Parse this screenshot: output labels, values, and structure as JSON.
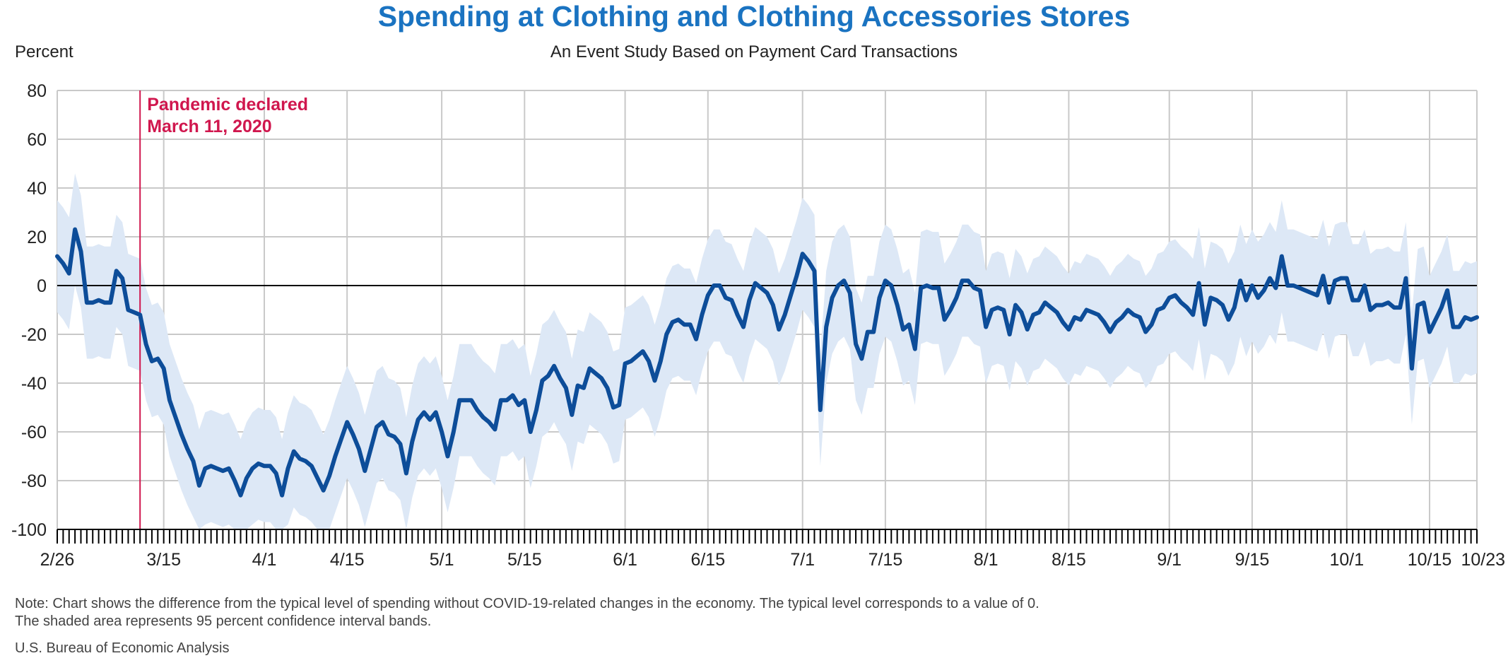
{
  "chart_data": {
    "type": "line",
    "title": "Spending at Clothing and Clothing Accessories Stores",
    "subtitle": "An Event Study Based on Payment Card Transactions",
    "ylabel": "Percent",
    "ylim": [
      -100,
      80
    ],
    "yticks": [
      -100,
      -80,
      -60,
      -40,
      -20,
      0,
      20,
      40,
      60,
      80
    ],
    "xlim": [
      "2020-02-26",
      "2020-10-23"
    ],
    "xtick_labels": [
      {
        "date": "2020-02-26",
        "label": "2/26"
      },
      {
        "date": "2020-03-15",
        "label": "3/15"
      },
      {
        "date": "2020-04-01",
        "label": "4/1"
      },
      {
        "date": "2020-04-15",
        "label": "4/15"
      },
      {
        "date": "2020-05-01",
        "label": "5/1"
      },
      {
        "date": "2020-05-15",
        "label": "5/15"
      },
      {
        "date": "2020-06-01",
        "label": "6/1"
      },
      {
        "date": "2020-06-15",
        "label": "6/15"
      },
      {
        "date": "2020-07-01",
        "label": "7/1"
      },
      {
        "date": "2020-07-15",
        "label": "7/15"
      },
      {
        "date": "2020-08-01",
        "label": "8/1"
      },
      {
        "date": "2020-08-15",
        "label": "8/15"
      },
      {
        "date": "2020-09-01",
        "label": "9/1"
      },
      {
        "date": "2020-09-15",
        "label": "9/15"
      },
      {
        "date": "2020-10-01",
        "label": "10/1"
      },
      {
        "date": "2020-10-15",
        "label": "10/15"
      },
      {
        "date": "2020-10-23",
        "label": "10/23"
      }
    ],
    "grid": true,
    "annotation": {
      "date": "2020-03-11",
      "line1": "Pandemic declared",
      "line2": "March 11, 2020",
      "color": "#d0174e"
    },
    "colors": {
      "line": "#0d4d99",
      "band": "#dde8f6",
      "grid": "#c9c9c9",
      "zero_line": "#000000",
      "title": "#1a73c1"
    },
    "series": [
      {
        "values_by_date": [
          [
            "2020-02-26",
            12
          ],
          [
            "2020-02-27",
            9
          ],
          [
            "2020-02-28",
            5
          ],
          [
            "2020-02-29",
            23
          ],
          [
            "2020-03-01",
            14
          ],
          [
            "2020-03-02",
            -7
          ],
          [
            "2020-03-03",
            -7
          ],
          [
            "2020-03-04",
            -6
          ],
          [
            "2020-03-05",
            -7
          ],
          [
            "2020-03-06",
            -7
          ],
          [
            "2020-03-07",
            6
          ],
          [
            "2020-03-08",
            3
          ],
          [
            "2020-03-09",
            -10
          ],
          [
            "2020-03-10",
            -11
          ],
          [
            "2020-03-11",
            -12
          ],
          [
            "2020-03-12",
            -24
          ],
          [
            "2020-03-13",
            -31
          ],
          [
            "2020-03-14",
            -30
          ],
          [
            "2020-03-15",
            -34
          ],
          [
            "2020-03-16",
            -47
          ],
          [
            "2020-03-17",
            -54
          ],
          [
            "2020-03-18",
            -61
          ],
          [
            "2020-03-19",
            -67
          ],
          [
            "2020-03-20",
            -72
          ],
          [
            "2020-03-21",
            -82
          ],
          [
            "2020-03-22",
            -75
          ],
          [
            "2020-03-23",
            -74
          ],
          [
            "2020-03-24",
            -75
          ],
          [
            "2020-03-25",
            -76
          ],
          [
            "2020-03-26",
            -75
          ],
          [
            "2020-03-27",
            -80
          ],
          [
            "2020-03-28",
            -86
          ],
          [
            "2020-03-29",
            -79
          ],
          [
            "2020-03-30",
            -75
          ],
          [
            "2020-03-31",
            -73
          ],
          [
            "2020-04-01",
            -74
          ],
          [
            "2020-04-02",
            -74
          ],
          [
            "2020-04-03",
            -77
          ],
          [
            "2020-04-04",
            -86
          ],
          [
            "2020-04-05",
            -75
          ],
          [
            "2020-04-06",
            -68
          ],
          [
            "2020-04-07",
            -71
          ],
          [
            "2020-04-08",
            -72
          ],
          [
            "2020-04-09",
            -74
          ],
          [
            "2020-04-10",
            -79
          ],
          [
            "2020-04-11",
            -84
          ],
          [
            "2020-04-12",
            -78
          ],
          [
            "2020-04-13",
            -70
          ],
          [
            "2020-04-14",
            -63
          ],
          [
            "2020-04-15",
            -56
          ],
          [
            "2020-04-16",
            -61
          ],
          [
            "2020-04-17",
            -67
          ],
          [
            "2020-04-18",
            -76
          ],
          [
            "2020-04-19",
            -67
          ],
          [
            "2020-04-20",
            -58
          ],
          [
            "2020-04-21",
            -56
          ],
          [
            "2020-04-22",
            -61
          ],
          [
            "2020-04-23",
            -62
          ],
          [
            "2020-04-24",
            -65
          ],
          [
            "2020-04-25",
            -77
          ],
          [
            "2020-04-26",
            -64
          ],
          [
            "2020-04-27",
            -55
          ],
          [
            "2020-04-28",
            -52
          ],
          [
            "2020-04-29",
            -55
          ],
          [
            "2020-04-30",
            -52
          ],
          [
            "2020-05-01",
            -60
          ],
          [
            "2020-05-02",
            -70
          ],
          [
            "2020-05-03",
            -60
          ],
          [
            "2020-05-04",
            -47
          ],
          [
            "2020-05-05",
            -47
          ],
          [
            "2020-05-06",
            -47
          ],
          [
            "2020-05-07",
            -51
          ],
          [
            "2020-05-08",
            -54
          ],
          [
            "2020-05-09",
            -56
          ],
          [
            "2020-05-10",
            -59
          ],
          [
            "2020-05-11",
            -47
          ],
          [
            "2020-05-12",
            -47
          ],
          [
            "2020-05-13",
            -45
          ],
          [
            "2020-05-14",
            -49
          ],
          [
            "2020-05-15",
            -47
          ],
          [
            "2020-05-16",
            -60
          ],
          [
            "2020-05-17",
            -51
          ],
          [
            "2020-05-18",
            -39
          ],
          [
            "2020-05-19",
            -37
          ],
          [
            "2020-05-20",
            -33
          ],
          [
            "2020-05-21",
            -38
          ],
          [
            "2020-05-22",
            -42
          ],
          [
            "2020-05-23",
            -53
          ],
          [
            "2020-05-24",
            -41
          ],
          [
            "2020-05-25",
            -42
          ],
          [
            "2020-05-26",
            -34
          ],
          [
            "2020-05-27",
            -36
          ],
          [
            "2020-05-28",
            -38
          ],
          [
            "2020-05-29",
            -42
          ],
          [
            "2020-05-30",
            -50
          ],
          [
            "2020-05-31",
            -49
          ],
          [
            "2020-06-01",
            -32
          ],
          [
            "2020-06-02",
            -31
          ],
          [
            "2020-06-03",
            -29
          ],
          [
            "2020-06-04",
            -27
          ],
          [
            "2020-06-05",
            -31
          ],
          [
            "2020-06-06",
            -39
          ],
          [
            "2020-06-07",
            -31
          ],
          [
            "2020-06-08",
            -20
          ],
          [
            "2020-06-09",
            -15
          ],
          [
            "2020-06-10",
            -14
          ],
          [
            "2020-06-11",
            -16
          ],
          [
            "2020-06-12",
            -16
          ],
          [
            "2020-06-13",
            -22
          ],
          [
            "2020-06-14",
            -12
          ],
          [
            "2020-06-15",
            -4
          ],
          [
            "2020-06-16",
            0
          ],
          [
            "2020-06-17",
            0
          ],
          [
            "2020-06-18",
            -5
          ],
          [
            "2020-06-19",
            -6
          ],
          [
            "2020-06-20",
            -12
          ],
          [
            "2020-06-21",
            -17
          ],
          [
            "2020-06-22",
            -6
          ],
          [
            "2020-06-23",
            1
          ],
          [
            "2020-06-24",
            -1
          ],
          [
            "2020-06-25",
            -3
          ],
          [
            "2020-06-26",
            -8
          ],
          [
            "2020-06-27",
            -18
          ],
          [
            "2020-06-28",
            -12
          ],
          [
            "2020-06-29",
            -4
          ],
          [
            "2020-06-30",
            4
          ],
          [
            "2020-07-01",
            13
          ],
          [
            "2020-07-02",
            10
          ],
          [
            "2020-07-03",
            6
          ],
          [
            "2020-07-04",
            -51
          ],
          [
            "2020-07-05",
            -17
          ],
          [
            "2020-07-06",
            -5
          ],
          [
            "2020-07-07",
            0
          ],
          [
            "2020-07-08",
            2
          ],
          [
            "2020-07-09",
            -3
          ],
          [
            "2020-07-10",
            -24
          ],
          [
            "2020-07-11",
            -30
          ],
          [
            "2020-07-12",
            -19
          ],
          [
            "2020-07-13",
            -19
          ],
          [
            "2020-07-14",
            -5
          ],
          [
            "2020-07-15",
            2
          ],
          [
            "2020-07-16",
            0
          ],
          [
            "2020-07-17",
            -8
          ],
          [
            "2020-07-18",
            -18
          ],
          [
            "2020-07-19",
            -16
          ],
          [
            "2020-07-20",
            -26
          ],
          [
            "2020-07-21",
            -1
          ],
          [
            "2020-07-22",
            0
          ],
          [
            "2020-07-23",
            -1
          ],
          [
            "2020-07-24",
            -1
          ],
          [
            "2020-07-25",
            -14
          ],
          [
            "2020-07-26",
            -10
          ],
          [
            "2020-07-27",
            -5
          ],
          [
            "2020-07-28",
            2
          ],
          [
            "2020-07-29",
            2
          ],
          [
            "2020-07-30",
            -1
          ],
          [
            "2020-07-31",
            -2
          ],
          [
            "2020-08-01",
            -17
          ],
          [
            "2020-08-02",
            -10
          ],
          [
            "2020-08-03",
            -9
          ],
          [
            "2020-08-04",
            -10
          ],
          [
            "2020-08-05",
            -20
          ],
          [
            "2020-08-06",
            -8
          ],
          [
            "2020-08-07",
            -11
          ],
          [
            "2020-08-08",
            -18
          ],
          [
            "2020-08-09",
            -12
          ],
          [
            "2020-08-10",
            -11
          ],
          [
            "2020-08-11",
            -7
          ],
          [
            "2020-08-12",
            -9
          ],
          [
            "2020-08-13",
            -11
          ],
          [
            "2020-08-14",
            -15
          ],
          [
            "2020-08-15",
            -18
          ],
          [
            "2020-08-16",
            -13
          ],
          [
            "2020-08-17",
            -14
          ],
          [
            "2020-08-18",
            -10
          ],
          [
            "2020-08-19",
            -11
          ],
          [
            "2020-08-20",
            -12
          ],
          [
            "2020-08-21",
            -15
          ],
          [
            "2020-08-22",
            -19
          ],
          [
            "2020-08-23",
            -15
          ],
          [
            "2020-08-24",
            -13
          ],
          [
            "2020-08-25",
            -10
          ],
          [
            "2020-08-26",
            -12
          ],
          [
            "2020-08-27",
            -13
          ],
          [
            "2020-08-28",
            -19
          ],
          [
            "2020-08-29",
            -16
          ],
          [
            "2020-08-30",
            -10
          ],
          [
            "2020-08-31",
            -9
          ],
          [
            "2020-09-01",
            -5
          ],
          [
            "2020-09-02",
            -4
          ],
          [
            "2020-09-03",
            -7
          ],
          [
            "2020-09-04",
            -9
          ],
          [
            "2020-09-05",
            -12
          ],
          [
            "2020-09-06",
            1
          ],
          [
            "2020-09-07",
            -16
          ],
          [
            "2020-09-08",
            -5
          ],
          [
            "2020-09-09",
            -6
          ],
          [
            "2020-09-10",
            -8
          ],
          [
            "2020-09-11",
            -14
          ],
          [
            "2020-09-12",
            -9
          ],
          [
            "2020-09-13",
            2
          ],
          [
            "2020-09-14",
            -6
          ],
          [
            "2020-09-15",
            0
          ],
          [
            "2020-09-16",
            -5
          ],
          [
            "2020-09-17",
            -2
          ],
          [
            "2020-09-18",
            3
          ],
          [
            "2020-09-19",
            -1
          ],
          [
            "2020-09-20",
            12
          ],
          [
            "2020-09-21",
            0
          ],
          [
            "2020-09-22",
            0
          ],
          [
            "2020-09-23",
            -1
          ],
          [
            "2020-09-24",
            -2
          ],
          [
            "2020-09-25",
            -3
          ],
          [
            "2020-09-26",
            -4
          ],
          [
            "2020-09-27",
            4
          ],
          [
            "2020-09-28",
            -7
          ],
          [
            "2020-09-29",
            2
          ],
          [
            "2020-09-30",
            3
          ],
          [
            "2020-10-01",
            3
          ],
          [
            "2020-10-02",
            -6
          ],
          [
            "2020-10-03",
            -6
          ],
          [
            "2020-10-04",
            0
          ],
          [
            "2020-10-05",
            -10
          ],
          [
            "2020-10-06",
            -8
          ],
          [
            "2020-10-07",
            -8
          ],
          [
            "2020-10-08",
            -7
          ],
          [
            "2020-10-09",
            -9
          ],
          [
            "2020-10-10",
            -9
          ],
          [
            "2020-10-11",
            3
          ],
          [
            "2020-10-12",
            -34
          ],
          [
            "2020-10-13",
            -8
          ],
          [
            "2020-10-14",
            -7
          ],
          [
            "2020-10-15",
            -19
          ],
          [
            "2020-10-16",
            -14
          ],
          [
            "2020-10-17",
            -9
          ],
          [
            "2020-10-18",
            -2
          ],
          [
            "2020-10-19",
            -17
          ],
          [
            "2020-10-20",
            -17
          ],
          [
            "2020-10-21",
            -13
          ],
          [
            "2020-10-22",
            -14
          ],
          [
            "2020-10-23",
            -13
          ]
        ],
        "ci_half_width": 23,
        "ci_note": "95 percent confidence interval band, approximately +/- 20 to 35 around the estimate"
      }
    ]
  },
  "footer": {
    "note_line1": "Note: Chart shows the difference from the typical level of spending without COVID-19-related changes in the economy. The typical level corresponds to a value of 0.",
    "note_line2": "The shaded area represents 95 percent confidence interval bands.",
    "source": "U.S. Bureau of Economic Analysis"
  }
}
